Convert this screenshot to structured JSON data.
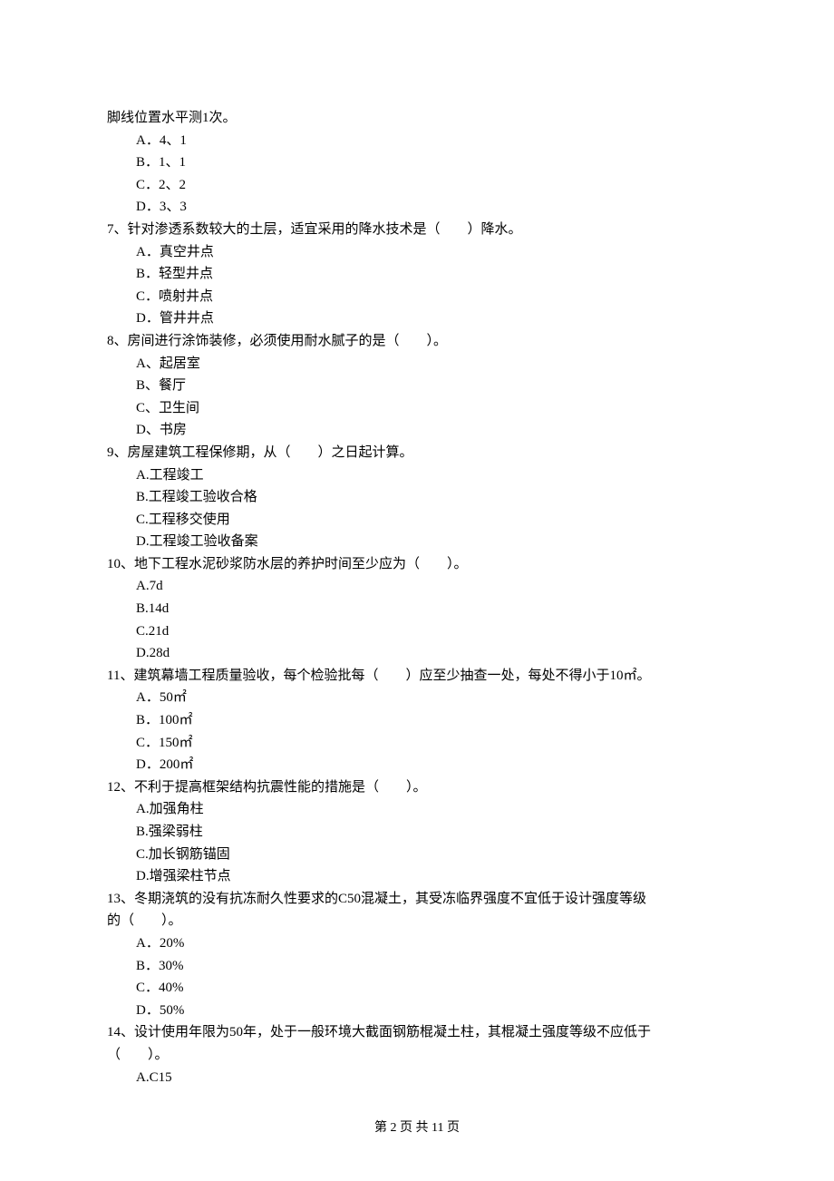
{
  "continuation": "脚线位置水平测1次。",
  "q6_options": [
    "A．4、1",
    "B．1、1",
    "C．2、2",
    "D．3、3"
  ],
  "questions": [
    {
      "stem": "7、针对渗透系数较大的土层，适宜采用的降水技术是（　　）降水。",
      "options": [
        "A．真空井点",
        "B．轻型井点",
        "C．喷射井点",
        "D．管井井点"
      ]
    },
    {
      "stem": "8、房间进行涂饰装修，必须使用耐水腻子的是（　　）。",
      "options": [
        "A、起居室",
        "B、餐厅",
        "C、卫生间",
        "D、书房"
      ]
    },
    {
      "stem": "9、房屋建筑工程保修期，从（　　）之日起计算。",
      "options": [
        "A.工程竣工",
        "B.工程竣工验收合格",
        "C.工程移交使用",
        "D.工程竣工验收备案"
      ]
    },
    {
      "stem": "10、地下工程水泥砂浆防水层的养护时间至少应为（　　）。",
      "options": [
        "A.7d",
        "B.14d",
        "C.21d",
        "D.28d"
      ]
    },
    {
      "stem": "11、建筑幕墙工程质量验收，每个检验批每（　　）应至少抽查一处，每处不得小于10㎡。",
      "options": [
        "A．50㎡",
        "B．100㎡",
        "C．150㎡",
        "D．200㎡"
      ]
    },
    {
      "stem": "12、不利于提高框架结构抗震性能的措施是（　　）。",
      "options": [
        "A.加强角柱",
        "B.强梁弱柱",
        "C.加长钢筋锚固",
        "D.增强梁柱节点"
      ]
    },
    {
      "stem_lines": [
        "13、冬期浇筑的没有抗冻耐久性要求的C50混凝土，其受冻临界强度不宜低于设计强度等级",
        "的（　　）。"
      ],
      "options": [
        "A．20%",
        "B．30%",
        "C．40%",
        "D．50%"
      ]
    },
    {
      "stem_lines": [
        "14、设计使用年限为50年，处于一般环境大截面钢筋棍凝土柱，其棍凝土强度等级不应低于",
        "（　　）。"
      ],
      "options": [
        "A.C15"
      ]
    }
  ],
  "footer": "第 2 页 共 11 页"
}
